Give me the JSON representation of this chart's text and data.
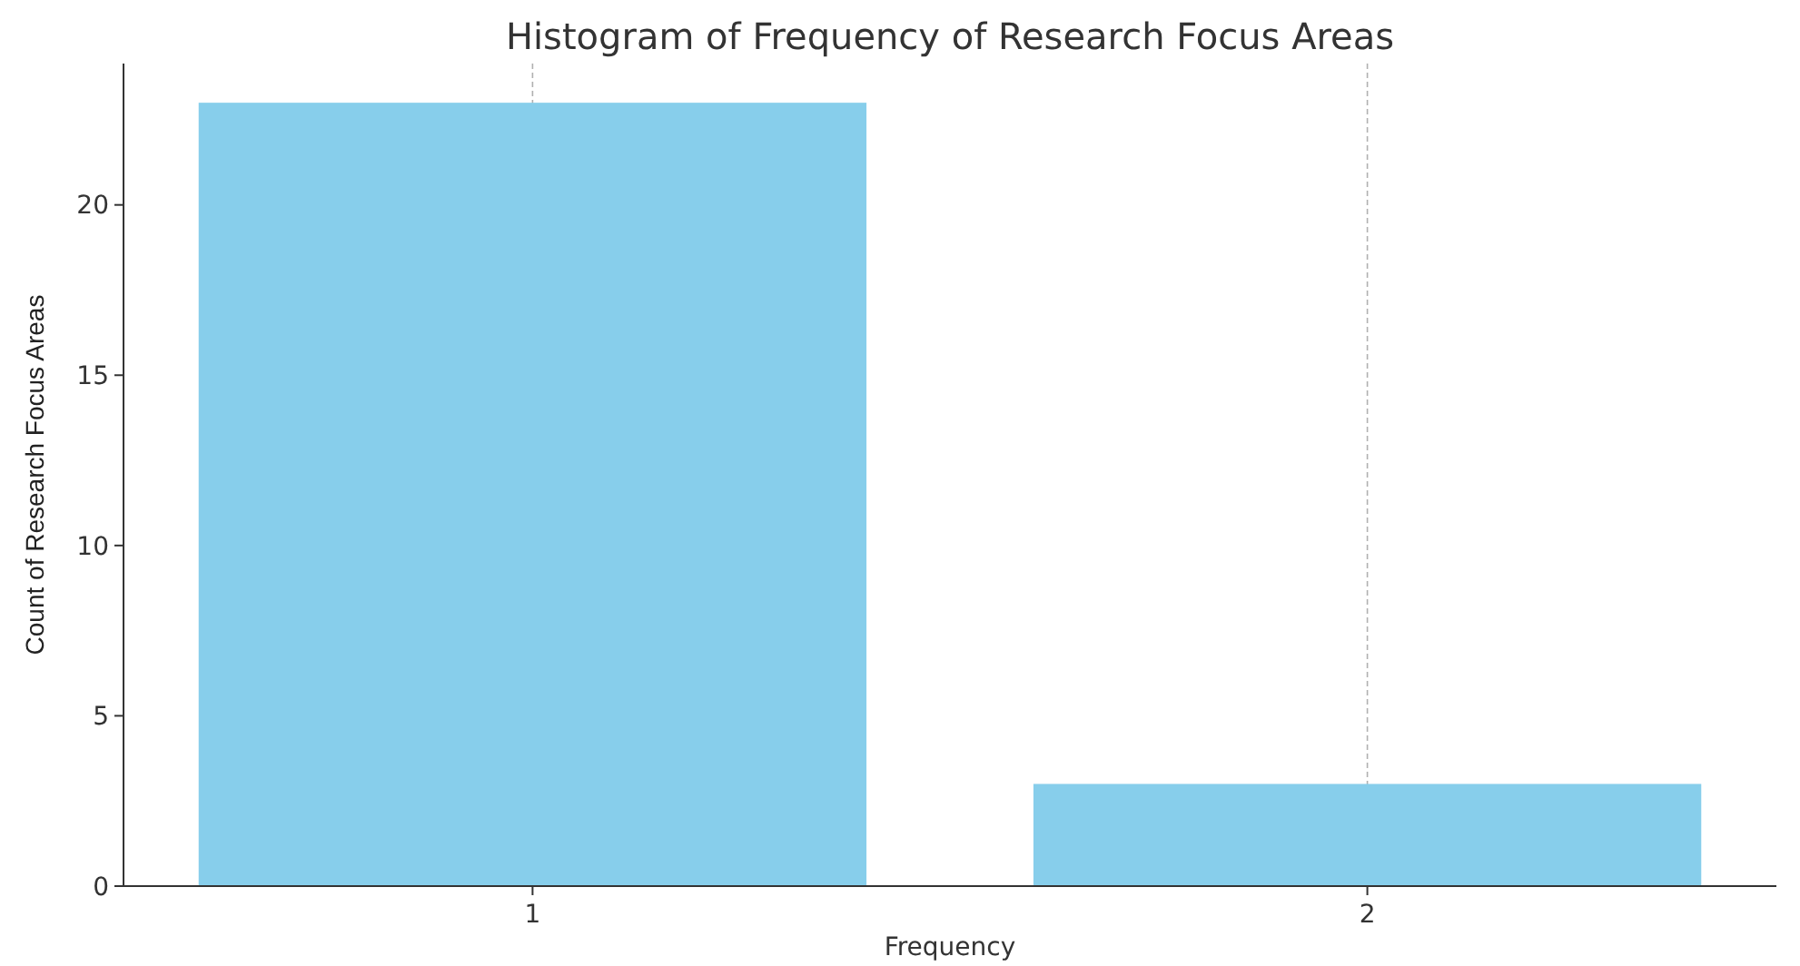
{
  "chart_data": {
    "type": "bar",
    "title": "Histogram of Frequency of Research Focus Areas",
    "xlabel": "Frequency",
    "ylabel": "Count of Research Focus Areas",
    "categories": [
      "1",
      "2"
    ],
    "values": [
      23,
      3
    ],
    "color": "#87ceeb",
    "ylim": [
      0,
      24.15
    ],
    "yticks": [
      0,
      5,
      10,
      15,
      20
    ],
    "grid": "x"
  }
}
